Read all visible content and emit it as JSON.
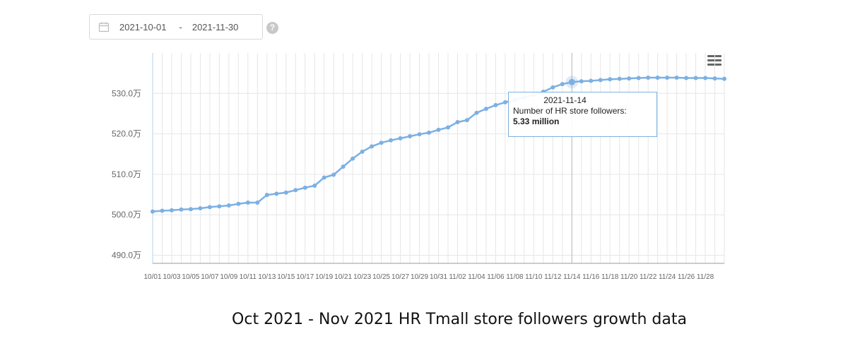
{
  "date_filter": {
    "start": "2021-10-01",
    "end": "2021-11-30",
    "separator": "-",
    "help": "?"
  },
  "caption": "Oct 2021 - Nov 2021 HR Tmall store followers growth data",
  "tooltip": {
    "date": "2021-11-14",
    "label": "Number of HR store followers:",
    "value": "5.33 million"
  },
  "chart_data": {
    "type": "line",
    "title": "",
    "xlabel": "",
    "ylabel": "",
    "ylim": [
      488,
      540
    ],
    "yticks": [
      "490.0万",
      "500.0万",
      "510.0万",
      "520.0万",
      "530.0万"
    ],
    "grid": true,
    "line_color": "#7cb0e3",
    "x": [
      "10/01",
      "10/02",
      "10/03",
      "10/04",
      "10/05",
      "10/06",
      "10/07",
      "10/08",
      "10/09",
      "10/10",
      "10/11",
      "10/12",
      "10/13",
      "10/14",
      "10/15",
      "10/16",
      "10/17",
      "10/18",
      "10/19",
      "10/20",
      "10/21",
      "10/22",
      "10/23",
      "10/24",
      "10/25",
      "10/26",
      "10/27",
      "10/28",
      "10/29",
      "10/30",
      "10/31",
      "11/01",
      "11/02",
      "11/03",
      "11/04",
      "11/05",
      "11/06",
      "11/07",
      "11/08",
      "11/09",
      "11/10",
      "11/11",
      "11/12",
      "11/13",
      "11/14",
      "11/15",
      "11/16",
      "11/17",
      "11/18",
      "11/19",
      "11/20",
      "11/21",
      "11/22",
      "11/23",
      "11/24",
      "11/25",
      "11/26",
      "11/27",
      "11/28",
      "11/29",
      "11/30"
    ],
    "xtick_labels": [
      "10/01",
      "10/03",
      "10/05",
      "10/07",
      "10/09",
      "10/11",
      "10/13",
      "10/15",
      "10/17",
      "10/19",
      "10/21",
      "10/23",
      "10/25",
      "10/27",
      "10/29",
      "10/31",
      "11/02",
      "11/04",
      "11/06",
      "11/08",
      "11/10",
      "11/12",
      "11/14",
      "11/16",
      "11/18",
      "11/20",
      "11/22",
      "11/24",
      "11/26",
      "11/28"
    ],
    "series": [
      {
        "name": "",
        "values": [
          500.8,
          501.0,
          501.1,
          501.3,
          501.4,
          501.6,
          501.9,
          502.1,
          502.3,
          502.7,
          503.0,
          503.0,
          504.9,
          505.2,
          505.5,
          506.1,
          506.7,
          507.2,
          509.2,
          509.9,
          511.9,
          513.9,
          515.6,
          516.9,
          517.8,
          518.4,
          518.9,
          519.4,
          519.9,
          520.3,
          521.0,
          521.6,
          522.9,
          523.4,
          525.2,
          526.2,
          527.1,
          527.8,
          528.4,
          529.0,
          529.7,
          530.4,
          531.5,
          532.3,
          532.8,
          533.0,
          533.1,
          533.3,
          533.5,
          533.6,
          533.7,
          533.8,
          533.9,
          533.9,
          533.9,
          533.9,
          533.8,
          533.8,
          533.8,
          533.7,
          533.6
        ]
      }
    ],
    "highlight_index": 44
  }
}
